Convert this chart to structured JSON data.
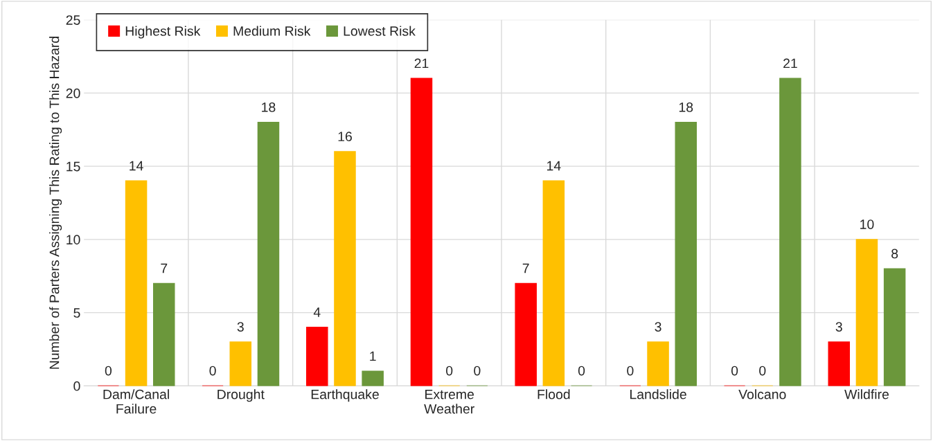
{
  "chart_data": {
    "type": "bar",
    "ylabel": "Number of Parters Assigning This Rating to This Hazard",
    "categories": [
      "Dam/Canal\nFailure",
      "Drought",
      "Earthquake",
      "Extreme\nWeather",
      "Flood",
      "Landslide",
      "Volcano",
      "Wildfire"
    ],
    "series": [
      {
        "name": "Highest Risk",
        "color": "#ff0000",
        "values": [
          0,
          0,
          4,
          21,
          7,
          0,
          0,
          3
        ]
      },
      {
        "name": "Medium Risk",
        "color": "#ffc000",
        "values": [
          14,
          3,
          16,
          0,
          14,
          3,
          0,
          10
        ]
      },
      {
        "name": "Lowest Risk",
        "color": "#6b973b",
        "values": [
          7,
          18,
          1,
          0,
          0,
          18,
          21,
          8
        ]
      }
    ],
    "ylim": [
      0,
      25
    ],
    "yticks": [
      0,
      5,
      10,
      15,
      20,
      25
    ],
    "grid": true,
    "legend": "top left",
    "data_labels": true
  }
}
